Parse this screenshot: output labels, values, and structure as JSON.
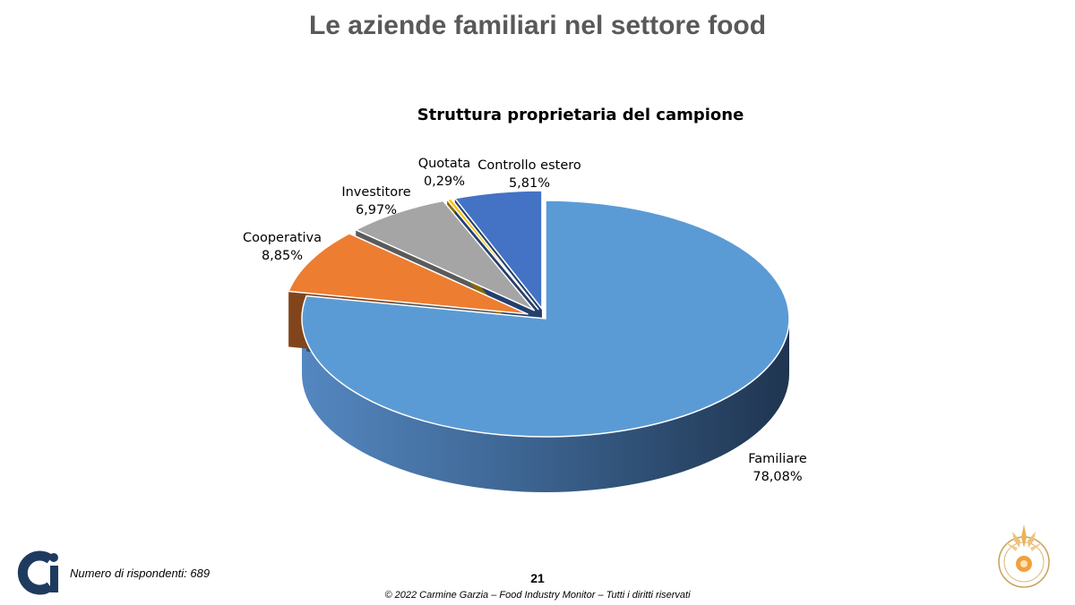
{
  "slide": {
    "title": "Le aziende familiari nel settore food",
    "respondents_note": "Numero di rispondenti: 689",
    "page_number": "21",
    "copyright": "© 2022 Carmine Garzia – Food Industry Monitor – Tutti i diritti riservati",
    "logo_icon": "ci-logo-icon",
    "seal_icon": "university-seal-icon"
  },
  "chart_data": {
    "type": "pie",
    "style": "3d-exploded",
    "title": "Struttura proprietaria del campione",
    "slices": [
      {
        "label": "Familiare",
        "value": 78.08,
        "display": "78,08%",
        "color": "#5B9BD5"
      },
      {
        "label": "Cooperativa",
        "value": 8.85,
        "display": "8,85%",
        "color": "#ED7D31"
      },
      {
        "label": "Investitore",
        "value": 6.97,
        "display": "6,97%",
        "color": "#A5A5A5"
      },
      {
        "label": "Quotata",
        "value": 0.29,
        "display": "0,29%",
        "color": "#FFC000"
      },
      {
        "label": "Controllo estero",
        "value": 5.81,
        "display": "5,81%",
        "color": "#4472C4"
      }
    ],
    "legend": "none"
  }
}
